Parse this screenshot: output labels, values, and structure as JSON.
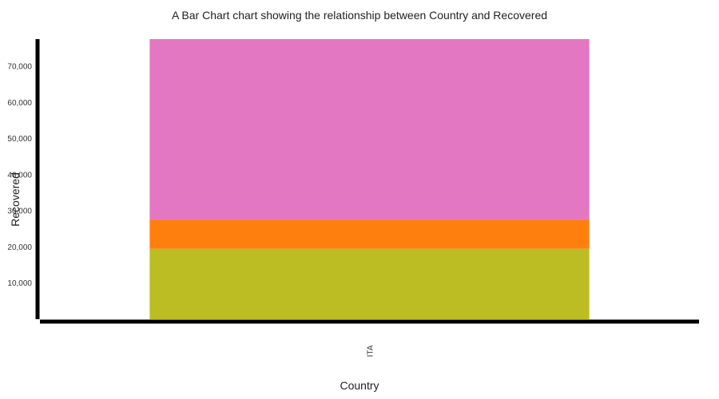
{
  "chart_data": {
    "type": "bar",
    "stacked": true,
    "title": "A Bar Chart chart showing the relationship between Country and Recovered",
    "xlabel": "Country",
    "ylabel": "Recovered",
    "categories": [
      "ITA"
    ],
    "series": [
      {
        "color": "#bcbd22",
        "values": [
          19500
        ]
      },
      {
        "color": "#ff7f0e",
        "values": [
          8000
        ]
      },
      {
        "color": "#e377c2",
        "values": [
          50000
        ]
      }
    ],
    "yticks": [
      10000,
      20000,
      30000,
      40000,
      50000,
      60000,
      70000
    ],
    "ytick_labels": [
      "10,000",
      "20,000",
      "30,000",
      "40,000",
      "50,000",
      "60,000",
      "70,000"
    ],
    "ylim": [
      0,
      77500
    ],
    "grid": false,
    "legend": false
  }
}
